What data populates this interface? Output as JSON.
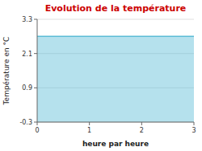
{
  "chart_data": {
    "type": "area",
    "title": "Evolution de la température",
    "xlabel": "heure par heure",
    "ylabel": "Température en °C",
    "x": [
      0,
      3
    ],
    "values": [
      2.7,
      2.7
    ],
    "color": "#5bbcd6",
    "xlim": [
      0,
      3
    ],
    "ylim": [
      -0.3,
      3.3
    ],
    "xticks": [
      0,
      1,
      2,
      3
    ],
    "yticks": [
      -0.3,
      0.9,
      2.1,
      3.3
    ],
    "grid": true
  }
}
